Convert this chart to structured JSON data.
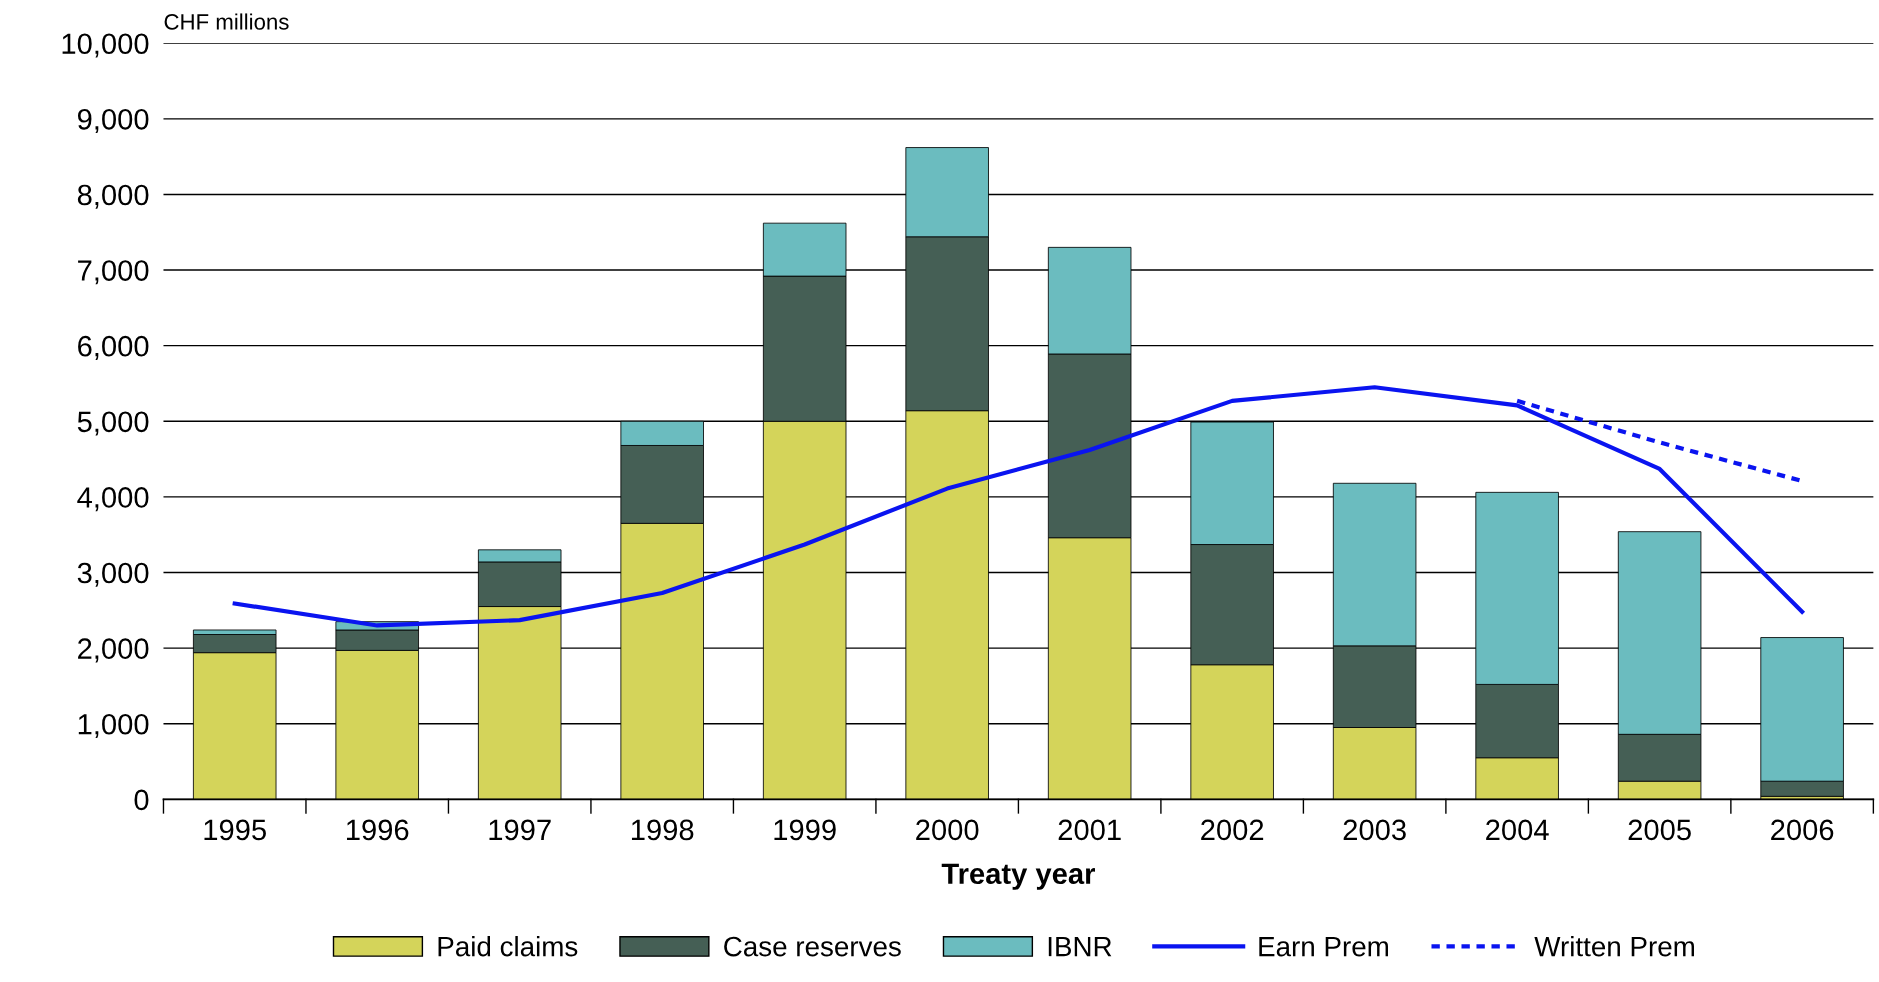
{
  "chart_data": {
    "type": "bar",
    "stacked": true,
    "xlabel": "Treaty year",
    "ylabel": "CHF millions",
    "categories": [
      "1995",
      "1996",
      "1997",
      "1998",
      "1999",
      "2000",
      "2001",
      "2002",
      "2003",
      "2004",
      "2005",
      "2006"
    ],
    "series": [
      {
        "name": "Paid claims",
        "color": "#d4d45a",
        "values": [
          1940,
          1970,
          2550,
          3650,
          5000,
          5140,
          3460,
          1780,
          950,
          550,
          240,
          40
        ]
      },
      {
        "name": "Case reserves",
        "color": "#455f55",
        "values": [
          240,
          270,
          590,
          1030,
          1920,
          2300,
          2430,
          1590,
          1080,
          970,
          620,
          200
        ]
      },
      {
        "name": "IBNR",
        "color": "#6bbcbf",
        "values": [
          60,
          110,
          160,
          320,
          700,
          1180,
          1410,
          1620,
          2150,
          2540,
          2680,
          1900
        ]
      },
      {
        "name": "Earn Prem",
        "type": "line",
        "line_style": "solid",
        "color": "#0a14f0",
        "values": [
          2590,
          2300,
          2370,
          2730,
          3370,
          4110,
          4620,
          5270,
          5450,
          5210,
          4370,
          2480
        ]
      },
      {
        "name": "Written Prem",
        "type": "line",
        "line_style": "dashed",
        "color": "#0a14f0",
        "values": [
          null,
          null,
          null,
          null,
          null,
          null,
          null,
          null,
          null,
          5270,
          4720,
          4210
        ]
      }
    ],
    "ylim": [
      0,
      10000
    ],
    "yticks": [
      {
        "value": 0,
        "label": "0"
      },
      {
        "value": 1000,
        "label": "1,000"
      },
      {
        "value": 2000,
        "label": "2,000"
      },
      {
        "value": 3000,
        "label": "3,000"
      },
      {
        "value": 4000,
        "label": "4,000"
      },
      {
        "value": 5000,
        "label": "5,000"
      },
      {
        "value": 6000,
        "label": "6,000"
      },
      {
        "value": 7000,
        "label": "7,000"
      },
      {
        "value": 8000,
        "label": "8,000"
      },
      {
        "value": 9000,
        "label": "9,000"
      },
      {
        "value": 10000,
        "label": "10,000"
      }
    ],
    "grid": "y",
    "legend": "bottom"
  }
}
